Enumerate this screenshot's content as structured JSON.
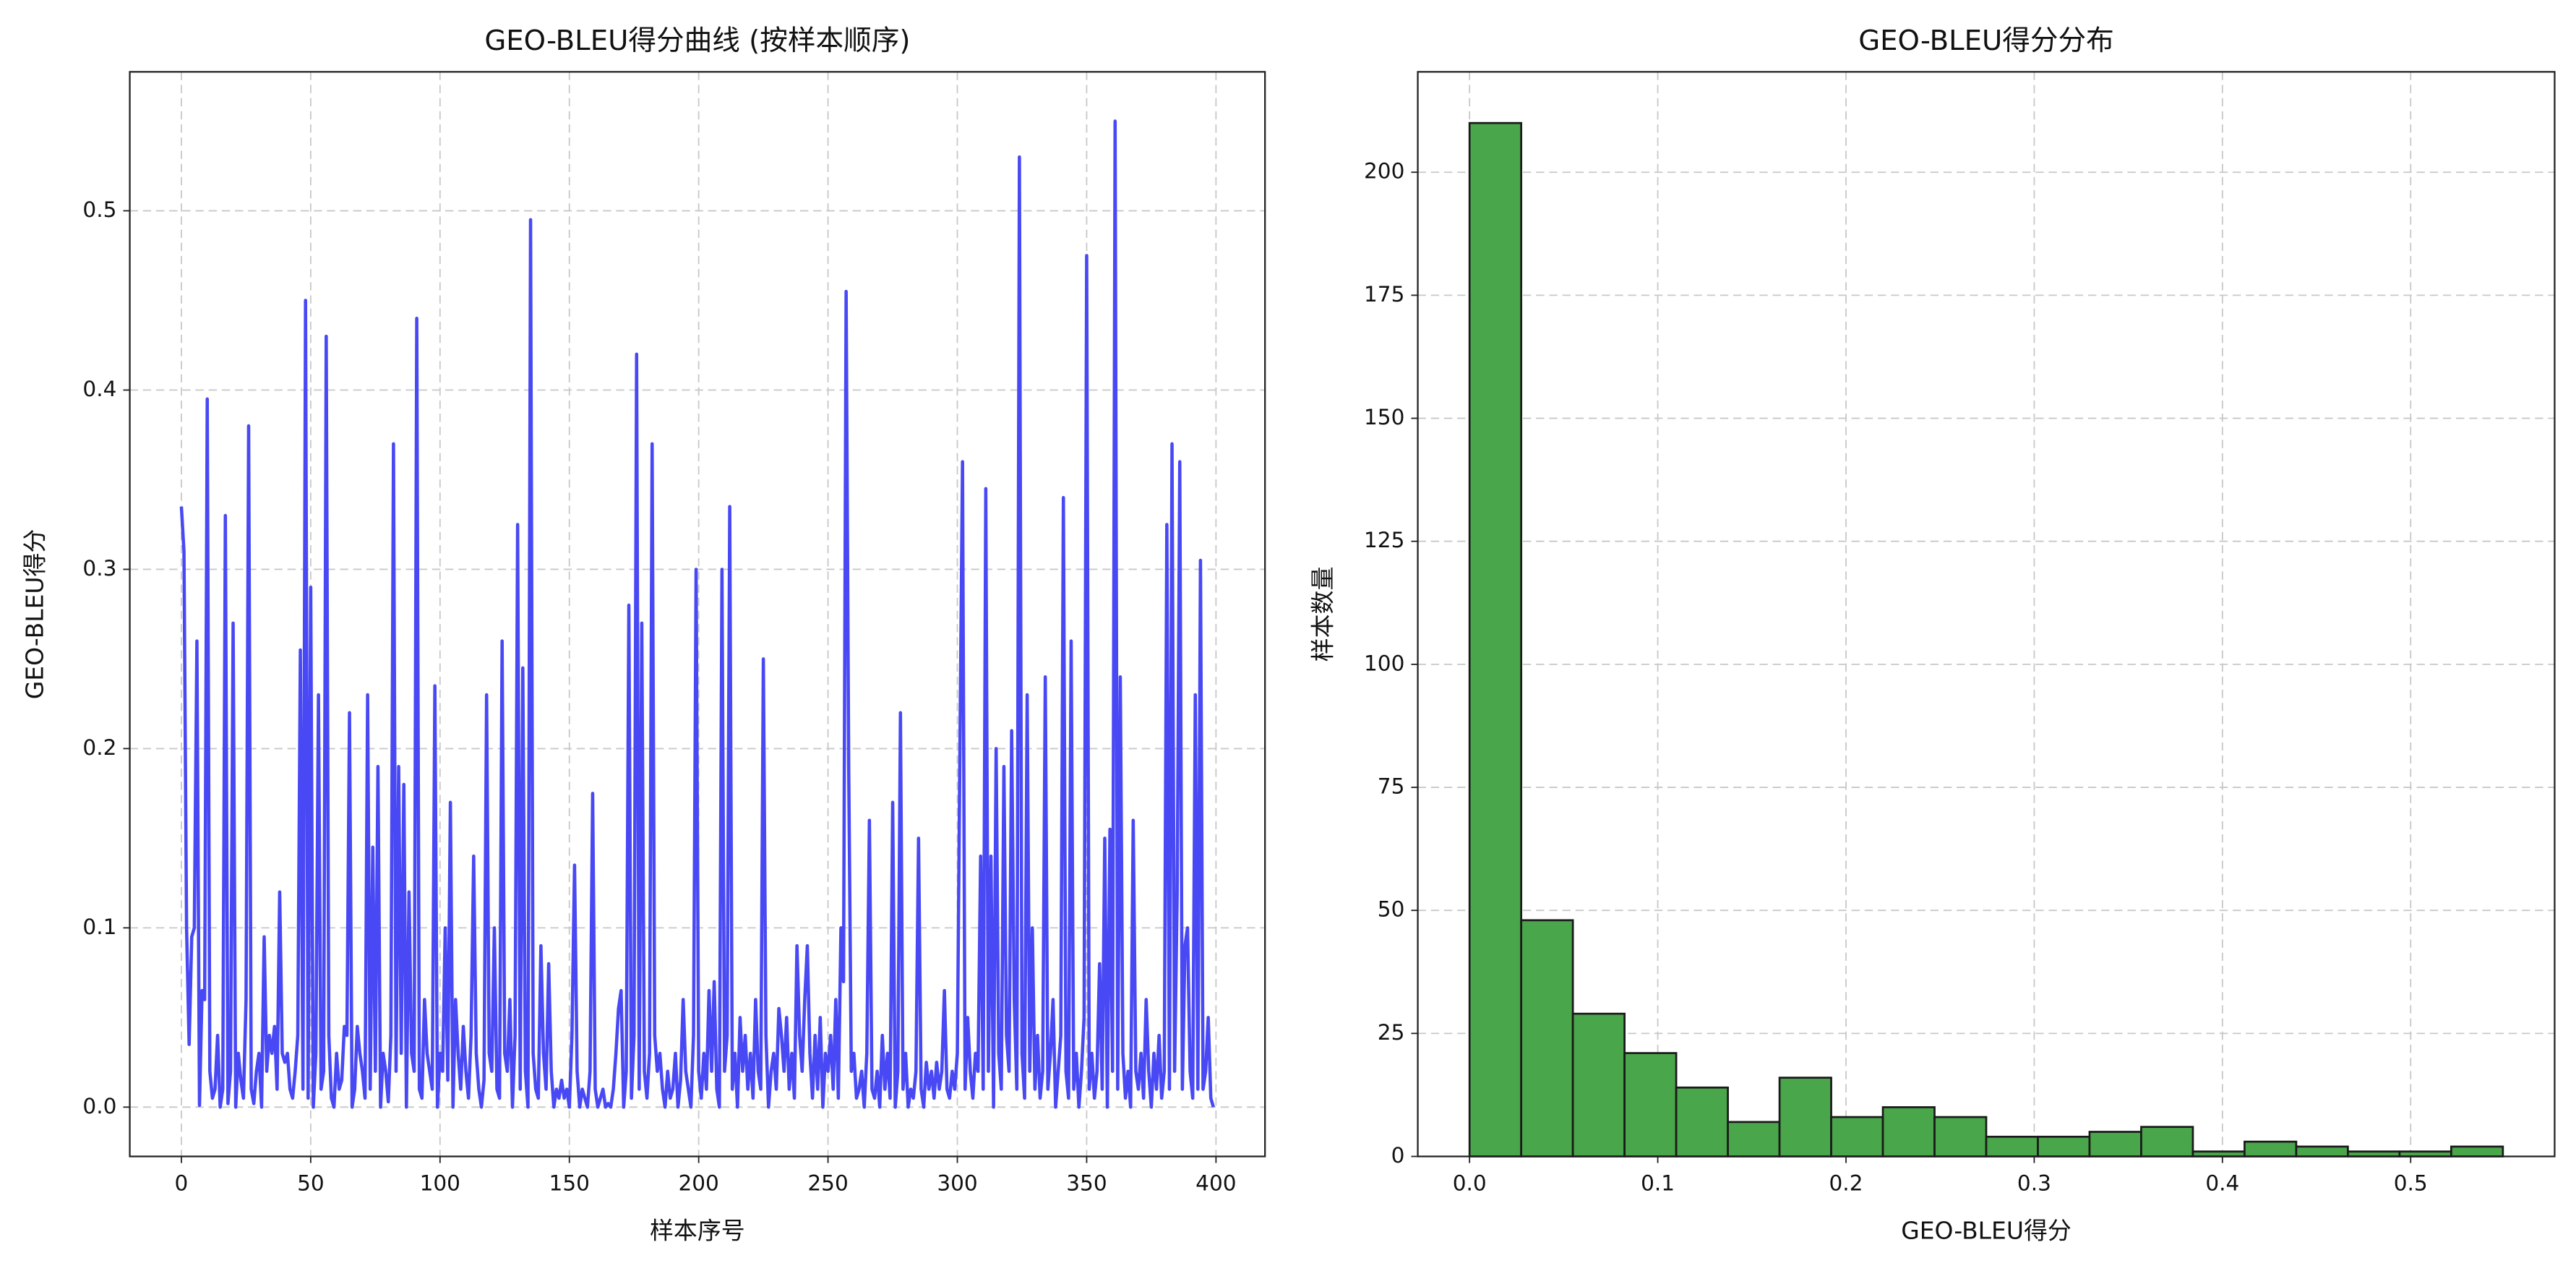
{
  "chart_data": [
    {
      "type": "line",
      "title": "GEO-BLEU得分曲线 (按样本顺序)",
      "x_label": "样本序号",
      "y_label": "GEO-BLEU得分",
      "xlim": [
        -19.95,
        418.95
      ],
      "ylim": [
        -0.0275,
        0.5775
      ],
      "xticks": [
        0,
        50,
        100,
        150,
        200,
        250,
        300,
        350,
        400
      ],
      "yticks": [
        {
          "value": 0,
          "label": "0.0"
        },
        0.1,
        0.2,
        0.3,
        0.4,
        0.5
      ],
      "grid": true,
      "series": [
        {
          "color": "#4848f4",
          "values": [
            0.335,
            0.31,
            0.1,
            0.035,
            0.095,
            0.1,
            0.26,
            0.001,
            0.065,
            0.06,
            0.395,
            0.02,
            0.005,
            0.01,
            0.04,
            0.0,
            0.01,
            0.33,
            0.002,
            0.02,
            0.27,
            0.0,
            0.03,
            0.015,
            0.005,
            0.06,
            0.38,
            0.01,
            0.002,
            0.02,
            0.03,
            0.0,
            0.095,
            0.02,
            0.04,
            0.03,
            0.045,
            0.01,
            0.12,
            0.03,
            0.025,
            0.03,
            0.01,
            0.005,
            0.02,
            0.04,
            0.255,
            0.01,
            0.45,
            0.005,
            0.29,
            0.0,
            0.03,
            0.23,
            0.01,
            0.02,
            0.43,
            0.04,
            0.005,
            0.0,
            0.03,
            0.01,
            0.015,
            0.045,
            0.04,
            0.22,
            0.0,
            0.01,
            0.045,
            0.03,
            0.02,
            0.005,
            0.23,
            0.01,
            0.145,
            0.02,
            0.19,
            0.0,
            0.03,
            0.02,
            0.003,
            0.04,
            0.37,
            0.02,
            0.19,
            0.03,
            0.18,
            0.0,
            0.12,
            0.03,
            0.02,
            0.44,
            0.01,
            0.005,
            0.06,
            0.03,
            0.02,
            0.01,
            0.235,
            0.0,
            0.03,
            0.02,
            0.1,
            0.015,
            0.17,
            0.0,
            0.06,
            0.03,
            0.01,
            0.045,
            0.02,
            0.005,
            0.04,
            0.14,
            0.03,
            0.01,
            0.0,
            0.015,
            0.23,
            0.03,
            0.02,
            0.1,
            0.01,
            0.005,
            0.26,
            0.03,
            0.02,
            0.06,
            0.0,
            0.04,
            0.325,
            0.01,
            0.245,
            0.02,
            0.0,
            0.495,
            0.03,
            0.01,
            0.005,
            0.09,
            0.03,
            0.01,
            0.08,
            0.02,
            0.0,
            0.01,
            0.005,
            0.015,
            0.005,
            0.01,
            0.0,
            0.04,
            0.135,
            0.02,
            0.0,
            0.01,
            0.005,
            0.0,
            0.02,
            0.175,
            0.01,
            0.0,
            0.005,
            0.01,
            0.0,
            0.002,
            0.0,
            0.01,
            0.03,
            0.055,
            0.065,
            0.0,
            0.02,
            0.28,
            0.005,
            0.04,
            0.42,
            0.01,
            0.27,
            0.02,
            0.005,
            0.03,
            0.37,
            0.04,
            0.02,
            0.03,
            0.01,
            0.0,
            0.02,
            0.005,
            0.01,
            0.03,
            0.0,
            0.015,
            0.06,
            0.02,
            0.01,
            0.0,
            0.04,
            0.3,
            0.02,
            0.005,
            0.03,
            0.01,
            0.065,
            0.02,
            0.07,
            0.01,
            0.0,
            0.3,
            0.02,
            0.04,
            0.335,
            0.01,
            0.03,
            0.0,
            0.05,
            0.02,
            0.04,
            0.01,
            0.03,
            0.005,
            0.06,
            0.02,
            0.01,
            0.25,
            0.04,
            0.0,
            0.02,
            0.03,
            0.01,
            0.055,
            0.04,
            0.02,
            0.05,
            0.01,
            0.03,
            0.005,
            0.09,
            0.04,
            0.02,
            0.06,
            0.09,
            0.03,
            0.005,
            0.04,
            0.01,
            0.05,
            0.0,
            0.03,
            0.02,
            0.04,
            0.01,
            0.06,
            0.005,
            0.1,
            0.07,
            0.455,
            0.19,
            0.02,
            0.03,
            0.005,
            0.01,
            0.02,
            0.0,
            0.03,
            0.16,
            0.01,
            0.005,
            0.02,
            0.0,
            0.04,
            0.01,
            0.03,
            0.005,
            0.17,
            0.0,
            0.02,
            0.22,
            0.01,
            0.03,
            0.0,
            0.01,
            0.005,
            0.02,
            0.15,
            0.01,
            0.0,
            0.025,
            0.01,
            0.02,
            0.005,
            0.025,
            0.01,
            0.02,
            0.065,
            0.01,
            0.005,
            0.02,
            0.01,
            0.03,
            0.2,
            0.36,
            0.01,
            0.05,
            0.02,
            0.005,
            0.03,
            0.02,
            0.14,
            0.01,
            0.345,
            0.02,
            0.14,
            0.0,
            0.2,
            0.03,
            0.01,
            0.19,
            0.04,
            0.02,
            0.21,
            0.06,
            0.01,
            0.53,
            0.03,
            0.005,
            0.23,
            0.02,
            0.1,
            0.01,
            0.04,
            0.005,
            0.02,
            0.24,
            0.01,
            0.03,
            0.06,
            0.0,
            0.02,
            0.04,
            0.34,
            0.02,
            0.005,
            0.26,
            0.01,
            0.03,
            0.0,
            0.02,
            0.05,
            0.475,
            0.01,
            0.03,
            0.005,
            0.02,
            0.08,
            0.01,
            0.15,
            0.0,
            0.155,
            0.02,
            0.55,
            0.01,
            0.24,
            0.03,
            0.005,
            0.02,
            0.0,
            0.16,
            0.02,
            0.01,
            0.03,
            0.005,
            0.06,
            0.02,
            0.0,
            0.03,
            0.01,
            0.04,
            0.005,
            0.02,
            0.325,
            0.01,
            0.37,
            0.02,
            0.12,
            0.36,
            0.01,
            0.09,
            0.1,
            0.02,
            0.005,
            0.23,
            0.01,
            0.305,
            0.01,
            0.02,
            0.05,
            0.005,
            0.0
          ]
        }
      ]
    },
    {
      "type": "histogram",
      "title": "GEO-BLEU得分分布",
      "x_label": "GEO-BLEU得分",
      "y_label": "样本数量",
      "xlim": [
        -0.0275,
        0.5765
      ],
      "ylim": [
        0,
        220.4
      ],
      "xticks": [
        {
          "value": 0,
          "label": "0.0"
        },
        0.1,
        0.2,
        0.3,
        0.4,
        0.5
      ],
      "yticks": [
        0,
        25,
        50,
        75,
        100,
        125,
        150,
        175,
        200
      ],
      "grid": true,
      "color": "#4aa64a",
      "edgecolor": "#1a1a1a",
      "bins": [
        0,
        0.02745,
        0.0549,
        0.08235,
        0.1098,
        0.13725,
        0.1647,
        0.19215,
        0.2196,
        0.24705,
        0.2745,
        0.30195,
        0.3294,
        0.35685,
        0.3843,
        0.41175,
        0.4392,
        0.46665,
        0.4941,
        0.52155,
        0.549
      ],
      "counts": [
        210,
        48,
        29,
        21,
        14,
        7,
        16,
        8,
        10,
        8,
        4,
        4,
        5,
        6,
        1,
        3,
        2,
        1,
        1,
        2
      ]
    }
  ]
}
